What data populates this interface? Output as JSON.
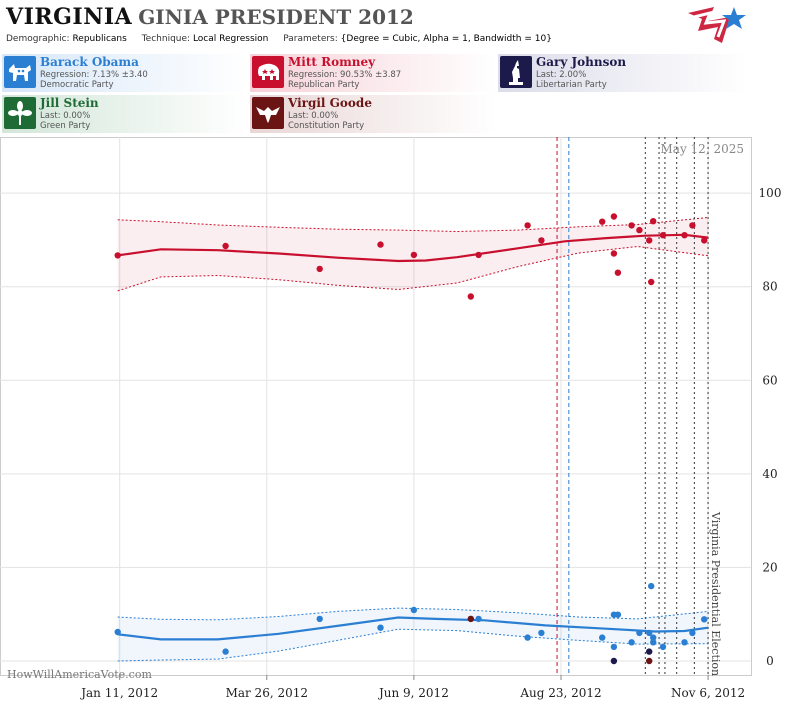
{
  "header": {
    "state": "VIRGINIA",
    "subtitle": "GINIA PRESIDENT 2012",
    "demographic_label": "Demographic:",
    "demographic_value": "Republicans",
    "technique_label": "Technique:",
    "technique_value": "Local Regression",
    "parameters_label": "Parameters:",
    "parameters_value": "{Degree = Cubic, Alpha = 1, Bandwidth = 10}"
  },
  "candidates": [
    {
      "name": "Barack Obama",
      "line2": "Regression: 7.13% ±3.40",
      "line3": "Democratic Party",
      "color": "#2b7fd3",
      "icon": "donkey-icon"
    },
    {
      "name": "Mitt Romney",
      "line2": "Regression: 90.53% ±3.87",
      "line3": "Republican Party",
      "color": "#c8102e",
      "icon": "elephant-icon"
    },
    {
      "name": "Gary Johnson",
      "line2": "Last: 2.00%",
      "line3": "Libertarian Party",
      "color": "#1c1a4a",
      "icon": "statue-of-liberty-icon"
    },
    {
      "name": "Jill Stein",
      "line2": "Last: 0.00%",
      "line3": "Green Party",
      "color": "#1e6b36",
      "icon": "green-flower-icon"
    },
    {
      "name": "Virgil Goode",
      "line2": "Last: 0.00%",
      "line3": "Constitution Party",
      "color": "#6b1414",
      "icon": "eagle-icon"
    }
  ],
  "chart_data": {
    "type": "scatter",
    "date_stamp": "May 12, 2025",
    "watermark": "HowWillAmericaVote.com",
    "event_label": "Virginia Presidential Election",
    "event_date": "2012-11-06",
    "x_ticks": [
      "Jan 11, 2012",
      "Mar 26, 2012",
      "Jun 9, 2012",
      "Aug 23, 2012",
      "Nov 6, 2012"
    ],
    "y_ticks": [
      0,
      20,
      40,
      60,
      80,
      100
    ],
    "ylim": [
      -3,
      112
    ],
    "xlim": [
      "2012-01-03",
      "2012-11-08"
    ],
    "grid": true,
    "series": [
      {
        "name": "Mitt Romney",
        "color": "#c8102e",
        "points": [
          [
            "2012-01-10",
            86.7
          ],
          [
            "2012-03-05",
            88.7
          ],
          [
            "2012-04-22",
            83.8
          ],
          [
            "2012-05-23",
            89.0
          ],
          [
            "2012-06-09",
            86.8
          ],
          [
            "2012-07-08",
            77.9
          ],
          [
            "2012-07-12",
            86.8
          ],
          [
            "2012-08-06",
            93.1
          ],
          [
            "2012-08-13",
            89.9
          ],
          [
            "2012-09-13",
            93.9
          ],
          [
            "2012-09-19",
            95.0
          ],
          [
            "2012-09-19",
            87.1
          ],
          [
            "2012-09-21",
            83.0
          ],
          [
            "2012-09-28",
            93.1
          ],
          [
            "2012-10-02",
            92.1
          ],
          [
            "2012-10-07",
            89.9
          ],
          [
            "2012-10-08",
            81.0
          ],
          [
            "2012-10-09",
            94.0
          ],
          [
            "2012-10-14",
            91.0
          ],
          [
            "2012-10-25",
            91.0
          ],
          [
            "2012-10-29",
            93.1
          ],
          [
            "2012-11-04",
            89.9
          ]
        ],
        "trend": [
          [
            "2012-01-10",
            86.7
          ],
          [
            "2012-02-01",
            88.0
          ],
          [
            "2012-03-01",
            87.8
          ],
          [
            "2012-04-01",
            87.1
          ],
          [
            "2012-05-01",
            86.2
          ],
          [
            "2012-06-01",
            85.5
          ],
          [
            "2012-06-15",
            85.6
          ],
          [
            "2012-07-01",
            86.3
          ],
          [
            "2012-08-01",
            88.2
          ],
          [
            "2012-08-25",
            89.7
          ],
          [
            "2012-09-15",
            90.4
          ],
          [
            "2012-10-05",
            90.9
          ],
          [
            "2012-10-25",
            91.1
          ],
          [
            "2012-11-06",
            90.5
          ]
        ],
        "band_upper": [
          [
            "2012-01-10",
            94.3
          ],
          [
            "2012-02-01",
            93.9
          ],
          [
            "2012-03-01",
            93.2
          ],
          [
            "2012-04-01",
            92.7
          ],
          [
            "2012-05-01",
            92.3
          ],
          [
            "2012-06-01",
            92.1
          ],
          [
            "2012-07-01",
            91.8
          ],
          [
            "2012-08-01",
            92.1
          ],
          [
            "2012-09-01",
            92.8
          ],
          [
            "2012-10-01",
            93.3
          ],
          [
            "2012-11-06",
            94.8
          ]
        ],
        "band_lower": [
          [
            "2012-01-10",
            79.1
          ],
          [
            "2012-02-01",
            82.1
          ],
          [
            "2012-03-01",
            82.4
          ],
          [
            "2012-04-01",
            81.5
          ],
          [
            "2012-05-01",
            80.3
          ],
          [
            "2012-06-01",
            79.4
          ],
          [
            "2012-07-01",
            80.8
          ],
          [
            "2012-08-01",
            84.3
          ],
          [
            "2012-09-01",
            87.2
          ],
          [
            "2012-10-01",
            88.6
          ],
          [
            "2012-11-06",
            86.6
          ]
        ]
      },
      {
        "name": "Barack Obama",
        "color": "#2b7fd3",
        "points": [
          [
            "2012-01-10",
            6.2
          ],
          [
            "2012-03-05",
            2.0
          ],
          [
            "2012-04-22",
            9.0
          ],
          [
            "2012-05-23",
            7.1
          ],
          [
            "2012-06-09",
            10.9
          ],
          [
            "2012-07-08",
            9.0
          ],
          [
            "2012-07-12",
            9.0
          ],
          [
            "2012-08-06",
            5.0
          ],
          [
            "2012-08-13",
            6.0
          ],
          [
            "2012-09-13",
            5.0
          ],
          [
            "2012-09-19",
            3.0
          ],
          [
            "2012-09-19",
            9.9
          ],
          [
            "2012-09-21",
            9.9
          ],
          [
            "2012-09-28",
            4.0
          ],
          [
            "2012-10-02",
            6.0
          ],
          [
            "2012-10-07",
            6.0
          ],
          [
            "2012-10-08",
            16.0
          ],
          [
            "2012-10-09",
            4.0
          ],
          [
            "2012-10-09",
            5.0
          ],
          [
            "2012-10-14",
            3.0
          ],
          [
            "2012-10-25",
            4.0
          ],
          [
            "2012-10-29",
            6.0
          ],
          [
            "2012-11-04",
            8.9
          ]
        ],
        "trend": [
          [
            "2012-01-10",
            5.7
          ],
          [
            "2012-02-01",
            4.6
          ],
          [
            "2012-03-01",
            4.6
          ],
          [
            "2012-04-01",
            5.8
          ],
          [
            "2012-05-01",
            7.5
          ],
          [
            "2012-06-01",
            9.3
          ],
          [
            "2012-06-20",
            9.0
          ],
          [
            "2012-07-15",
            8.7
          ],
          [
            "2012-08-15",
            7.6
          ],
          [
            "2012-09-15",
            6.9
          ],
          [
            "2012-10-10",
            6.3
          ],
          [
            "2012-10-25",
            6.4
          ],
          [
            "2012-11-06",
            7.1
          ]
        ],
        "band_upper": [
          [
            "2012-01-10",
            9.4
          ],
          [
            "2012-02-01",
            8.9
          ],
          [
            "2012-03-01",
            8.8
          ],
          [
            "2012-04-01",
            9.5
          ],
          [
            "2012-05-01",
            10.6
          ],
          [
            "2012-06-01",
            11.3
          ],
          [
            "2012-07-01",
            11.0
          ],
          [
            "2012-08-01",
            10.3
          ],
          [
            "2012-09-01",
            9.4
          ],
          [
            "2012-10-01",
            9.0
          ],
          [
            "2012-11-06",
            10.6
          ]
        ],
        "band_lower": [
          [
            "2012-01-10",
            0.0
          ],
          [
            "2012-02-01",
            0.2
          ],
          [
            "2012-03-01",
            0.4
          ],
          [
            "2012-04-01",
            2.1
          ],
          [
            "2012-05-01",
            4.4
          ],
          [
            "2012-06-01",
            6.8
          ],
          [
            "2012-07-01",
            6.5
          ],
          [
            "2012-08-01",
            5.3
          ],
          [
            "2012-09-01",
            4.4
          ],
          [
            "2012-10-01",
            3.6
          ],
          [
            "2012-11-06",
            3.7
          ]
        ]
      },
      {
        "name": "Gary Johnson",
        "color": "#1c1a4a",
        "points": [
          [
            "2012-09-19",
            0.0
          ],
          [
            "2012-10-07",
            2.0
          ]
        ]
      },
      {
        "name": "Virgil Goode",
        "color": "#6b1414",
        "points": [
          [
            "2012-07-08",
            9.0
          ],
          [
            "2012-10-07",
            0.0
          ]
        ]
      }
    ],
    "event_lines": [
      {
        "date": "2012-08-21",
        "color": "#c8102e",
        "style": "dashed"
      },
      {
        "date": "2012-08-27",
        "color": "#2b7fd3",
        "style": "dashed"
      },
      {
        "date": "2012-10-05",
        "color": "#333333",
        "style": "dotted"
      },
      {
        "date": "2012-10-12",
        "color": "#333333",
        "style": "dotted"
      },
      {
        "date": "2012-10-15",
        "color": "#333333",
        "style": "dotted"
      },
      {
        "date": "2012-10-21",
        "color": "#333333",
        "style": "dotted"
      },
      {
        "date": "2012-10-30",
        "color": "#333333",
        "style": "dotted"
      },
      {
        "date": "2012-11-06",
        "color": "#333333",
        "style": "dotted"
      }
    ]
  }
}
